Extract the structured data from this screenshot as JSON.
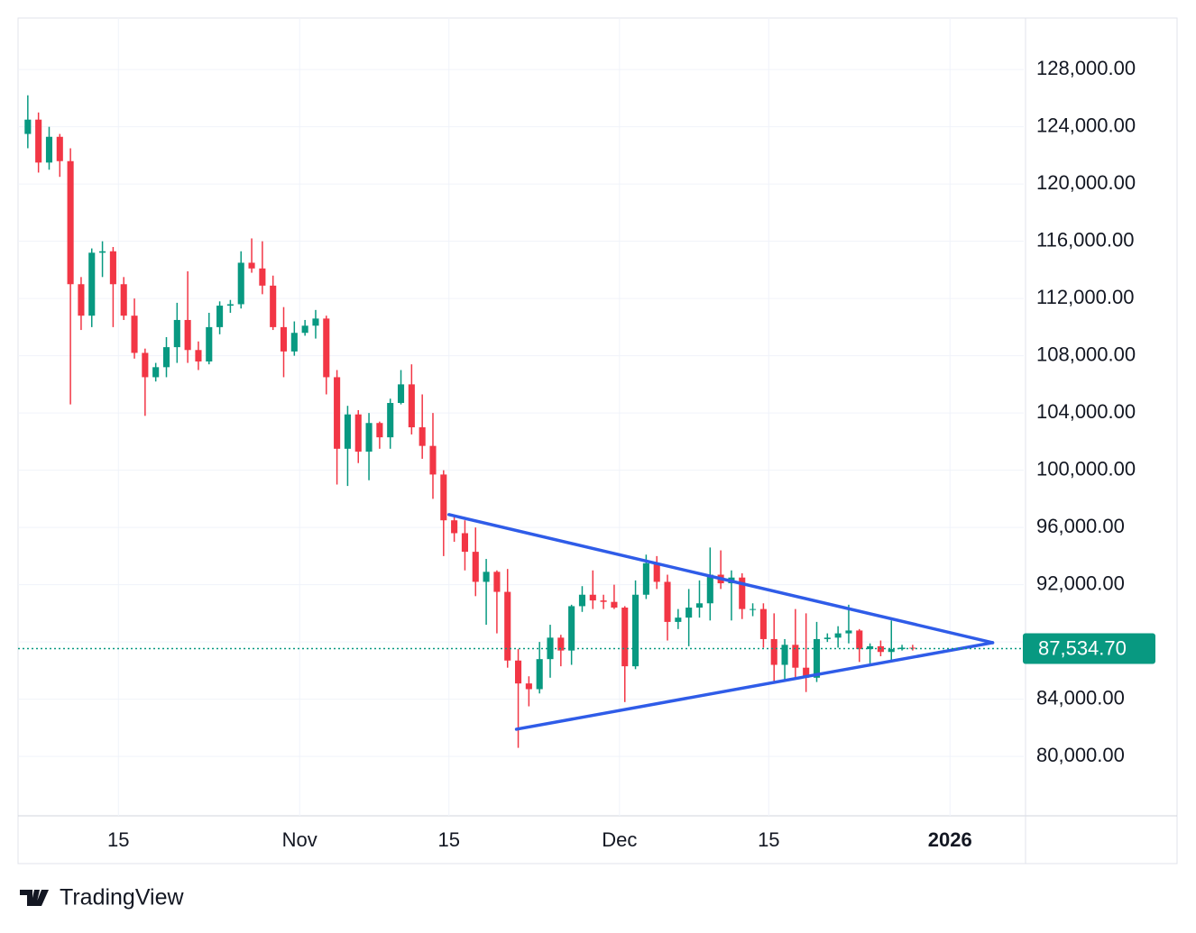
{
  "chart_data": {
    "type": "candlestick",
    "x": [
      "2025-10-06",
      "2025-10-07",
      "2025-10-08",
      "2025-10-09",
      "2025-10-10",
      "2025-10-11",
      "2025-10-12",
      "2025-10-13",
      "2025-10-14",
      "2025-10-15",
      "2025-10-16",
      "2025-10-17",
      "2025-10-18",
      "2025-10-19",
      "2025-10-20",
      "2025-10-21",
      "2025-10-22",
      "2025-10-23",
      "2025-10-24",
      "2025-10-25",
      "2025-10-26",
      "2025-10-27",
      "2025-10-28",
      "2025-10-29",
      "2025-10-30",
      "2025-10-31",
      "2025-11-01",
      "2025-11-02",
      "2025-11-03",
      "2025-11-04",
      "2025-11-05",
      "2025-11-06",
      "2025-11-07",
      "2025-11-08",
      "2025-11-09",
      "2025-11-10",
      "2025-11-11",
      "2025-11-12",
      "2025-11-13",
      "2025-11-14",
      "2025-11-15",
      "2025-11-16",
      "2025-11-17",
      "2025-11-18",
      "2025-11-19",
      "2025-11-20",
      "2025-11-21",
      "2025-11-22",
      "2025-11-23",
      "2025-11-24",
      "2025-11-25",
      "2025-11-26",
      "2025-11-27",
      "2025-11-28",
      "2025-11-29",
      "2025-11-30",
      "2025-12-01",
      "2025-12-02",
      "2025-12-03",
      "2025-12-04",
      "2025-12-05",
      "2025-12-06",
      "2025-12-07",
      "2025-12-08",
      "2025-12-09",
      "2025-12-10",
      "2025-12-11",
      "2025-12-12",
      "2025-12-13",
      "2025-12-14",
      "2025-12-15",
      "2025-12-16",
      "2025-12-17",
      "2025-12-18",
      "2025-12-19",
      "2025-12-20",
      "2025-12-21",
      "2025-12-22",
      "2025-12-23",
      "2025-12-24",
      "2025-12-25",
      "2025-12-26",
      "2025-12-27",
      "2025-12-28"
    ],
    "open": [
      123500,
      124500,
      121500,
      123300,
      121600,
      113000,
      110800,
      115200,
      115300,
      113000,
      110800,
      108200,
      106500,
      107200,
      108600,
      110500,
      108400,
      107600,
      110000,
      111500,
      111600,
      114500,
      114100,
      112900,
      110000,
      108300,
      109600,
      110100,
      110600,
      106500,
      101500,
      103900,
      101300,
      103300,
      102300,
      104700,
      106000,
      103000,
      101700,
      99700,
      96500,
      95600,
      94300,
      92200,
      92900,
      91500,
      86700,
      85100,
      84700,
      86800,
      88300,
      87400,
      90500,
      91300,
      90900,
      90800,
      90400,
      86300,
      91300,
      93500,
      92200,
      89400,
      89700,
      90400,
      90700,
      92700,
      92100,
      92500,
      90300,
      90300,
      88200,
      86400,
      87800,
      86200,
      85500,
      88200,
      88300,
      88600,
      88800,
      87500,
      87700,
      87300,
      87500,
      87600
    ],
    "high": [
      126200,
      125000,
      124000,
      123500,
      122500,
      113500,
      115500,
      116000,
      115600,
      113500,
      112000,
      108500,
      107500,
      109300,
      111700,
      113900,
      109000,
      111000,
      111800,
      111900,
      115300,
      116200,
      116000,
      113600,
      111400,
      110400,
      110500,
      111200,
      110800,
      107000,
      104500,
      104200,
      104000,
      103400,
      105000,
      107000,
      107400,
      105300,
      104000,
      100000,
      96800,
      96500,
      96000,
      93800,
      93000,
      93100,
      87500,
      85600,
      88000,
      89200,
      88500,
      90600,
      91900,
      93000,
      91300,
      92000,
      90500,
      92300,
      94100,
      94000,
      92700,
      90300,
      91700,
      92300,
      94600,
      94400,
      93000,
      92800,
      90700,
      90700,
      90000,
      88200,
      90300,
      90000,
      89400,
      88600,
      89100,
      90600,
      88900,
      87900,
      88100,
      89500,
      87800,
      87800
    ],
    "low": [
      122500,
      120800,
      121000,
      120500,
      104600,
      109800,
      110000,
      113500,
      110000,
      110500,
      107800,
      103800,
      106200,
      106500,
      107500,
      107500,
      107000,
      107400,
      109500,
      111000,
      111300,
      113800,
      112300,
      109800,
      106500,
      108000,
      109400,
      109200,
      105300,
      99000,
      98900,
      100500,
      99300,
      101500,
      101500,
      104600,
      102500,
      100800,
      98000,
      94000,
      95000,
      93000,
      91200,
      89200,
      88600,
      86200,
      80600,
      83500,
      84400,
      85500,
      86300,
      86400,
      90100,
      90300,
      90300,
      90300,
      83800,
      86100,
      91000,
      91700,
      88100,
      88900,
      87700,
      89700,
      89500,
      91700,
      89500,
      89600,
      89800,
      87600,
      85200,
      85300,
      85400,
      84500,
      85200,
      88000,
      87600,
      87900,
      86600,
      86500,
      87000,
      86700,
      87400,
      87400
    ],
    "close": [
      124500,
      121500,
      123300,
      121600,
      113000,
      110800,
      115200,
      115300,
      113000,
      110800,
      108200,
      106500,
      107200,
      108600,
      110500,
      108400,
      107600,
      110000,
      111500,
      111600,
      114500,
      114100,
      112900,
      110000,
      108300,
      109600,
      110100,
      110600,
      106500,
      101500,
      103900,
      101300,
      103300,
      102300,
      104700,
      106000,
      103000,
      101700,
      99700,
      96500,
      95600,
      94300,
      92200,
      92900,
      91500,
      86700,
      85100,
      84700,
      86800,
      88300,
      87400,
      90500,
      91300,
      90900,
      90800,
      90400,
      86300,
      91300,
      93500,
      92200,
      89400,
      89700,
      90400,
      90700,
      92700,
      92100,
      92500,
      90300,
      90300,
      88200,
      86400,
      87800,
      86200,
      85500,
      88200,
      88300,
      88600,
      88800,
      87500,
      87700,
      87300,
      87500,
      87600,
      87534.7
    ],
    "up_color": "#089981",
    "down_color": "#f23645",
    "xlim": [
      "2025-10-05T14:00",
      "2026-01-07T22:00"
    ],
    "xticks": [
      {
        "value": "2025-10-15",
        "label": "15"
      },
      {
        "value": "2025-11-01",
        "label": "Nov"
      },
      {
        "value": "2025-11-15",
        "label": "15"
      },
      {
        "value": "2025-12-01",
        "label": "Dec"
      },
      {
        "value": "2025-12-15",
        "label": "15"
      },
      {
        "value": "2026-01-01",
        "label": "2026"
      }
    ],
    "ylim": [
      75850,
      131600
    ],
    "yticks": [
      {
        "value": 80000,
        "label": "80,000.00"
      },
      {
        "value": 84000,
        "label": "84,000.00"
      },
      {
        "value": 88000,
        "label": "88,000.00"
      },
      {
        "value": 92000,
        "label": "92,000.00"
      },
      {
        "value": 96000,
        "label": "96,000.00"
      },
      {
        "value": 100000,
        "label": "100,000.00"
      },
      {
        "value": 104000,
        "label": "104,000.00"
      },
      {
        "value": 108000,
        "label": "108,000.00"
      },
      {
        "value": 112000,
        "label": "112,000.00"
      },
      {
        "value": 116000,
        "label": "116,000.00"
      },
      {
        "value": 120000,
        "label": "120,000.00"
      },
      {
        "value": 124000,
        "label": "124,000.00"
      },
      {
        "value": 128000,
        "label": "128,000.00"
      }
    ],
    "grid": true,
    "last_price": {
      "value": 87534.7,
      "label": "87,534.70"
    },
    "trendlines": [
      {
        "color": "#2f5ce8",
        "x": [
          "2025-11-15",
          "2026-01-05"
        ],
        "y": [
          96900,
          87950
        ]
      },
      {
        "color": "#2f5ce8",
        "x": [
          "2025-11-21T08:00",
          "2026-01-05"
        ],
        "y": [
          81900,
          87950
        ]
      }
    ],
    "brand": "TradingView"
  }
}
